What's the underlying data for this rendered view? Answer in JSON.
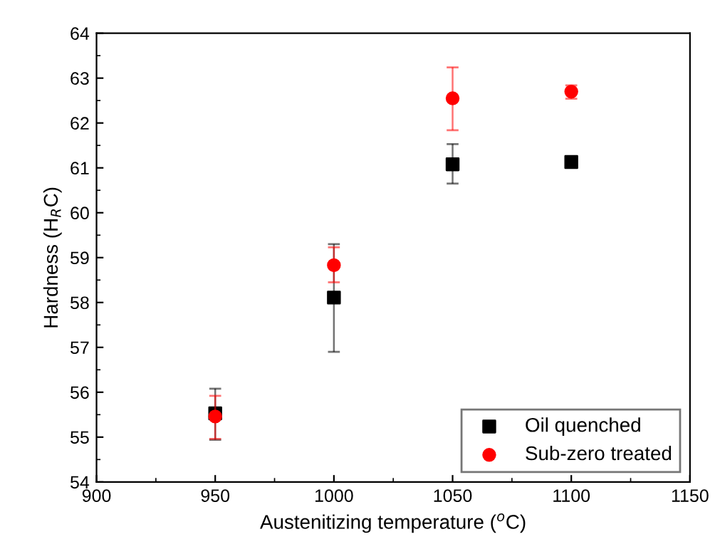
{
  "chart_data": {
    "type": "scatter",
    "xlabel": "Austenitizing temperature ($^{o}$C)",
    "ylabel": "Hardness (H$_{R}$C)",
    "x": [
      950,
      1000,
      1050,
      1100
    ],
    "series": [
      {
        "name": "Oil quenched",
        "color": "#000000",
        "marker": "square",
        "values": [
          55.53,
          58.11,
          61.08,
          61.13
        ],
        "errors": [
          [
            54.94,
            56.08
          ],
          [
            56.9,
            59.3
          ],
          [
            60.65,
            61.53
          ],
          null
        ]
      },
      {
        "name": "Sub-zero treated",
        "color": "#ff0000",
        "marker": "circle",
        "values": [
          55.46,
          58.83,
          62.55,
          62.7
        ],
        "errors": [
          [
            54.96,
            55.92
          ],
          [
            58.45,
            59.23
          ],
          [
            61.84,
            63.24
          ],
          [
            62.54,
            62.84
          ]
        ]
      }
    ],
    "xlim": [
      900,
      1150
    ],
    "xticks": [
      900,
      950,
      1000,
      1050,
      1100,
      1150
    ],
    "ylim": [
      54,
      64
    ],
    "yticks": [
      54,
      55,
      56,
      57,
      58,
      59,
      60,
      61,
      62,
      63,
      64
    ],
    "grid": false,
    "legend": "bottom right"
  }
}
